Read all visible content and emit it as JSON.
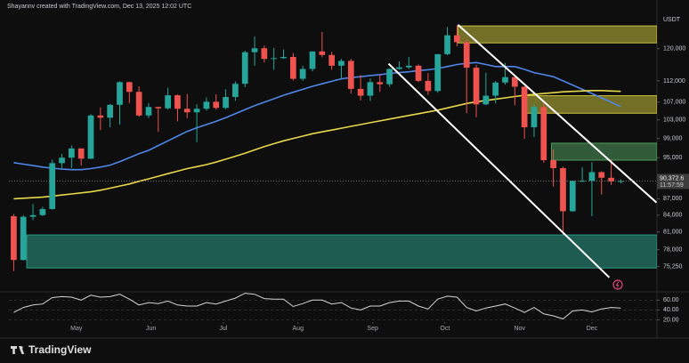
{
  "chart_data": {
    "type": "candlestick",
    "header": "Shayannv created with TradingView.com, Dec 13, 2025 12:02 UTC",
    "currency": "USDT",
    "brand": "TradingView",
    "xlim": [
      -0.5,
      66.75
    ],
    "xticks": [
      {
        "value": 6.5,
        "label": "May"
      },
      {
        "value": 14.25,
        "label": "Jun"
      },
      {
        "value": 21.75,
        "label": "Jul"
      },
      {
        "value": 29.5,
        "label": "Aug"
      },
      {
        "value": 37.25,
        "label": "Sep"
      },
      {
        "value": 44.75,
        "label": "Oct"
      },
      {
        "value": 52.5,
        "label": "Nov"
      },
      {
        "value": 60,
        "label": "Dec"
      }
    ],
    "ylim": [
      71400,
      133200
    ],
    "log_scale": true,
    "grid": false,
    "yticks": [
      {
        "value": 75250,
        "label": "75,250"
      },
      {
        "value": 78000,
        "label": "78,000"
      },
      {
        "value": 81000,
        "label": "81,000"
      },
      {
        "value": 84000,
        "label": "84,000"
      },
      {
        "value": 87000,
        "label": "87,000"
      },
      {
        "value": 95000,
        "label": "95,000"
      },
      {
        "value": 99000,
        "label": "99,000"
      },
      {
        "value": 103000,
        "label": "103,000"
      },
      {
        "value": 107000,
        "label": "107,000"
      },
      {
        "value": 112000,
        "label": "112,000"
      },
      {
        "value": 120000,
        "label": "120,000"
      }
    ],
    "open": [
      83800,
      76300,
      83700,
      84000,
      85100,
      93900,
      95000,
      96900,
      94800,
      104000,
      103500,
      106400,
      111700,
      109400,
      104000,
      105900,
      105600,
      108600,
      105500,
      104700,
      105500,
      107100,
      105700,
      108200,
      111300,
      119100,
      120100,
      117400,
      117600,
      117900,
      112500,
      114900,
      119300,
      118400,
      115700,
      116900,
      110100,
      108500,
      111700,
      111200,
      114900,
      115300,
      115700,
      112000,
      109600,
      118600,
      123500,
      121700,
      115200,
      106500,
      108500,
      111600,
      112900,
      110600,
      101400,
      105900,
      94500,
      92900,
      84700,
      90400,
      90400,
      92100,
      91000,
      90300
    ],
    "high": [
      84200,
      84000,
      86000,
      85500,
      94600,
      95800,
      97500,
      96900,
      104300,
      105800,
      106600,
      111900,
      111800,
      110700,
      106800,
      106000,
      110400,
      108800,
      108900,
      106500,
      108100,
      108800,
      110000,
      111900,
      119500,
      123200,
      120800,
      120200,
      119800,
      118900,
      115700,
      119300,
      124400,
      119200,
      117400,
      117400,
      113400,
      112600,
      113400,
      115000,
      116800,
      117900,
      116000,
      113900,
      118600,
      125700,
      126200,
      122500,
      115900,
      114000,
      112000,
      116400,
      112900,
      110700,
      106600,
      107500,
      96700,
      93200,
      90400,
      93100,
      94100,
      92300,
      94600,
      90700
    ],
    "low": [
      74500,
      76200,
      83100,
      83800,
      85000,
      92900,
      92900,
      93400,
      94700,
      100800,
      101400,
      102000,
      106800,
      103700,
      103400,
      100400,
      105300,
      102700,
      103400,
      98200,
      105100,
      105300,
      105400,
      107300,
      110500,
      115700,
      116500,
      114700,
      117400,
      112100,
      112000,
      114300,
      117800,
      114700,
      112400,
      109000,
      107400,
      107300,
      109400,
      110600,
      114700,
      114900,
      111700,
      108700,
      109200,
      118400,
      120600,
      104500,
      103600,
      106300,
      106700,
      111100,
      106300,
      98900,
      99300,
      94000,
      89300,
      80600,
      84600,
      90200,
      83800,
      87800,
      89600,
      89900
    ],
    "close": [
      76300,
      83700,
      84000,
      85100,
      93900,
      95000,
      96900,
      94800,
      104000,
      103500,
      106400,
      111700,
      109400,
      104000,
      105900,
      105600,
      108600,
      105500,
      104700,
      105500,
      107100,
      105700,
      108200,
      111300,
      119100,
      120100,
      117400,
      117600,
      117900,
      112500,
      114900,
      119300,
      118400,
      115700,
      116900,
      110100,
      108500,
      111700,
      111200,
      114900,
      115300,
      115700,
      112000,
      109600,
      118600,
      123500,
      121700,
      115200,
      106500,
      108500,
      111600,
      112900,
      110600,
      101400,
      105900,
      94500,
      92900,
      84700,
      90400,
      90400,
      92100,
      91000,
      90300,
      90372.6
    ],
    "up_color": "#26a69a",
    "down_color": "#ef5350",
    "last_price": {
      "value": 90372.6,
      "label": "90,372.6",
      "countdown": "11:57:59"
    },
    "series": [
      {
        "color": "#4f86e8",
        "values": [
          94000,
          93700,
          93400,
          93100,
          92900,
          92700,
          92600,
          92600,
          92800,
          93100,
          93500,
          94200,
          95000,
          95800,
          96500,
          97500,
          98500,
          99500,
          100500,
          101300,
          102000,
          102700,
          103500,
          104400,
          105300,
          106200,
          107000,
          107800,
          108600,
          109300,
          110000,
          110700,
          111300,
          111900,
          112500,
          112800,
          113000,
          113300,
          113500,
          113800,
          114000,
          114200,
          114500,
          114700,
          115000,
          115500,
          116000,
          116300,
          116500,
          116000,
          115500,
          115500,
          115500,
          114800,
          114000,
          113500,
          113000,
          112000,
          111000,
          110000,
          109000,
          108000,
          107000,
          106000
        ]
      },
      {
        "color": "#e8d84a",
        "values": [
          87000,
          87100,
          87200,
          87300,
          87500,
          87700,
          87900,
          88100,
          88300,
          88600,
          89000,
          89400,
          89800,
          90300,
          90800,
          91300,
          91800,
          92300,
          92800,
          93200,
          93600,
          94100,
          94700,
          95300,
          95900,
          96600,
          97300,
          97900,
          98500,
          99000,
          99500,
          100000,
          100400,
          100800,
          101200,
          101600,
          102000,
          102400,
          102800,
          103200,
          103600,
          104000,
          104400,
          104800,
          105200,
          105700,
          106200,
          106700,
          107100,
          107400,
          107700,
          108000,
          108300,
          108600,
          108800,
          109000,
          109200,
          109400,
          109500,
          109600,
          109700,
          109700,
          109600,
          109500
        ]
      }
    ],
    "zones": [
      {
        "low": 121500,
        "high": 126000,
        "start": 46.1,
        "color": "#c9bf3a"
      },
      {
        "low": 104500,
        "high": 108500,
        "start": 53.1,
        "color": "#c9bf3a"
      },
      {
        "low": 94500,
        "high": 98000,
        "start": 55.8,
        "color": "#4e9a5c"
      },
      {
        "low": 75000,
        "high": 80500,
        "start": 1.35,
        "color": "#2b9a86"
      }
    ],
    "channel": [
      {
        "x": [
          46.1,
          66.7
        ],
        "y": [
          126300,
          86300
        ]
      },
      {
        "x": [
          38.9,
          61.8
        ],
        "y": [
          116200,
          73500
        ]
      }
    ],
    "rsi": {
      "color": "#d6d6d6",
      "ylim": [
        10,
        75
      ],
      "yticks": [
        {
          "value": 20,
          "label": "20.00"
        },
        {
          "value": 40,
          "label": "40.00"
        },
        {
          "value": 60,
          "label": "60.00"
        }
      ],
      "values": [
        35,
        45,
        50,
        52,
        65,
        67,
        66,
        60,
        70,
        66,
        67,
        72,
        62,
        50,
        55,
        53,
        58,
        50,
        48,
        48,
        55,
        52,
        58,
        64,
        74,
        72,
        63,
        62,
        62,
        47,
        53,
        60,
        60,
        52,
        55,
        44,
        40,
        48,
        48,
        55,
        58,
        58,
        48,
        42,
        62,
        68,
        66,
        45,
        38,
        44,
        48,
        52,
        44,
        35,
        45,
        32,
        28,
        22,
        38,
        40,
        36,
        42,
        45,
        44
      ]
    }
  }
}
